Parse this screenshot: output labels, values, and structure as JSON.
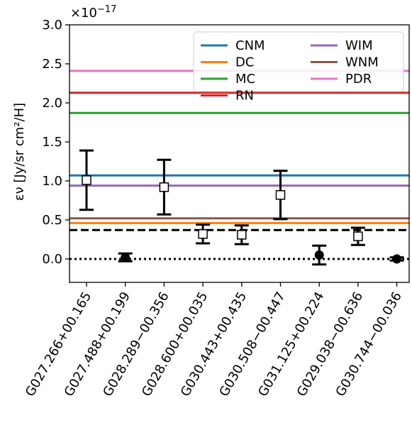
{
  "chart_data": {
    "type": "scatter",
    "ylabel": "εν [Jy/sr cm²/H]",
    "y_multiplier": "×10",
    "y_multiplier_exp": "−17",
    "ylim": [
      -0.3,
      3.0
    ],
    "yticks": [
      "0.0",
      "0.5",
      "1.0",
      "1.5",
      "2.0",
      "2.5",
      "3.0"
    ],
    "categories": [
      "G027.266+00.165",
      "G027.488+00.199",
      "G028.289−00.356",
      "G028.600+00.035",
      "G030.443+00.435",
      "G030.508−00.447",
      "G031.125+00.224",
      "G029.038−00.636",
      "G030.744−00.036"
    ],
    "points": [
      {
        "y": 1.01,
        "err": 0.38,
        "marker": "open-square"
      },
      {
        "y": 0.02,
        "err": 0.05,
        "marker": "filled-circle"
      },
      {
        "y": 0.92,
        "err": 0.35,
        "marker": "open-square"
      },
      {
        "y": 0.32,
        "err": 0.12,
        "marker": "open-square"
      },
      {
        "y": 0.31,
        "err": 0.12,
        "marker": "open-square"
      },
      {
        "y": 0.82,
        "err": 0.31,
        "marker": "open-square"
      },
      {
        "y": 0.05,
        "err": 0.12,
        "marker": "filled-circle"
      },
      {
        "y": 0.29,
        "err": 0.11,
        "marker": "open-square"
      },
      {
        "y": 0.0,
        "err": 0.02,
        "marker": "filled-circle"
      }
    ],
    "reference_lines": [
      {
        "name": "CNM",
        "y": 1.07,
        "color": "#1f77b4"
      },
      {
        "name": "DC",
        "y": 0.46,
        "color": "#ff7f0e"
      },
      {
        "name": "MC",
        "y": 1.87,
        "color": "#2ca02c"
      },
      {
        "name": "RN",
        "y": 2.13,
        "color": "#d62728"
      },
      {
        "name": "WIM",
        "y": 0.94,
        "color": "#9467bd"
      },
      {
        "name": "WNM",
        "y": 0.52,
        "color": "#8c564b"
      },
      {
        "name": "PDR",
        "y": 2.41,
        "color": "#e377c2"
      }
    ],
    "dashed_line": 0.37,
    "dotted_line": 0.0,
    "legend_position": "top-right",
    "grid": false
  }
}
